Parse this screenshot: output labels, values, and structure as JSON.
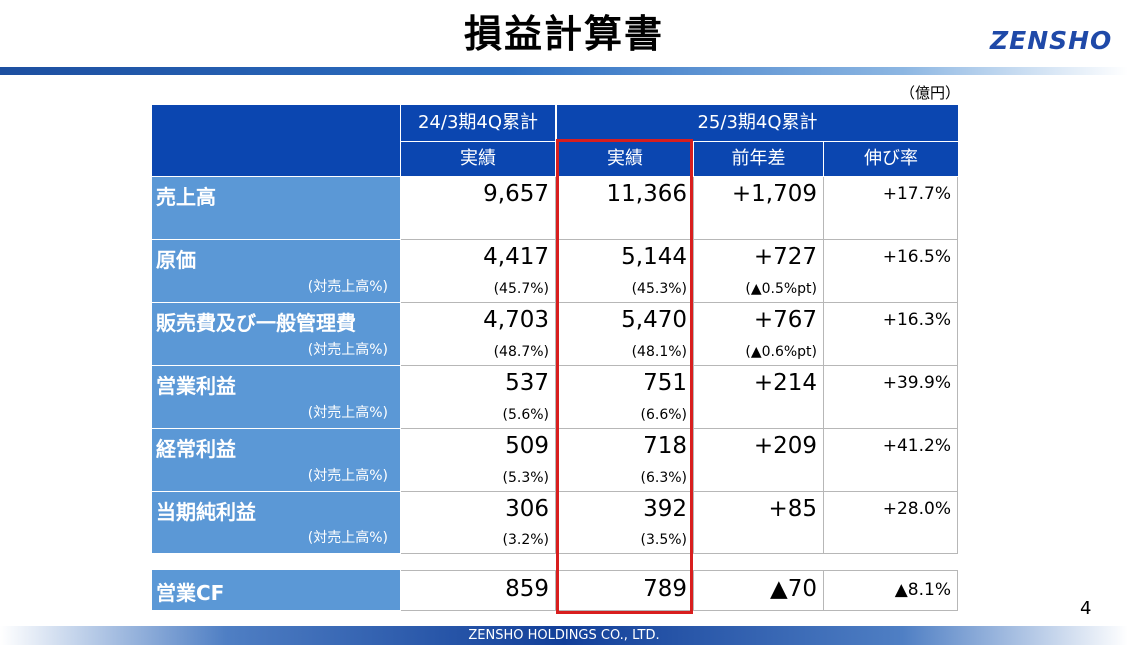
{
  "title": "損益計算書",
  "logo": "ZENSHO",
  "unit": "（億円）",
  "header": {
    "group1": "24/3期4Q累計",
    "group2": "25/3期4Q累計",
    "col_actual_prev": "実績",
    "col_actual_curr": "実績",
    "col_diff": "前年差",
    "col_growth": "伸び率"
  },
  "rows": [
    {
      "label": "売上高",
      "sublabel": "",
      "prev": "9,657",
      "prev_sub": "",
      "curr": "11,366",
      "curr_sub": "",
      "diff": "+1,709",
      "diff_sub": "",
      "growth": "+17.7%"
    },
    {
      "label": "原価",
      "sublabel": "(対売上高%)",
      "prev": "4,417",
      "prev_sub": "(45.7%)",
      "curr": "5,144",
      "curr_sub": "(45.3%)",
      "diff": "+727",
      "diff_sub": "(▲0.5%pt)",
      "growth": "+16.5%"
    },
    {
      "label": "販売費及び一般管理費",
      "sublabel": "(対売上高%)",
      "prev": "4,703",
      "prev_sub": "(48.7%)",
      "curr": "5,470",
      "curr_sub": "(48.1%)",
      "diff": "+767",
      "diff_sub": "(▲0.6%pt)",
      "growth": "+16.3%"
    },
    {
      "label": "営業利益",
      "sublabel": "(対売上高%)",
      "prev": "537",
      "prev_sub": "(5.6%)",
      "curr": "751",
      "curr_sub": "(6.6%)",
      "diff": "+214",
      "diff_sub": "",
      "growth": "+39.9%"
    },
    {
      "label": "経常利益",
      "sublabel": "(対売上高%)",
      "prev": "509",
      "prev_sub": "(5.3%)",
      "curr": "718",
      "curr_sub": "(6.3%)",
      "diff": "+209",
      "diff_sub": "",
      "growth": "+41.2%"
    },
    {
      "label": "当期純利益",
      "sublabel": "(対売上高%)",
      "prev": "306",
      "prev_sub": "(3.2%)",
      "curr": "392",
      "curr_sub": "(3.5%)",
      "diff": "+85",
      "diff_sub": "",
      "growth": "+28.0%"
    }
  ],
  "cf_row": {
    "label": "営業CF",
    "prev": "859",
    "curr": "789",
    "diff": "▲70",
    "growth": "▲8.1%"
  },
  "page_number": "4",
  "footer": "ZENSHO HOLDINGS CO., LTD."
}
